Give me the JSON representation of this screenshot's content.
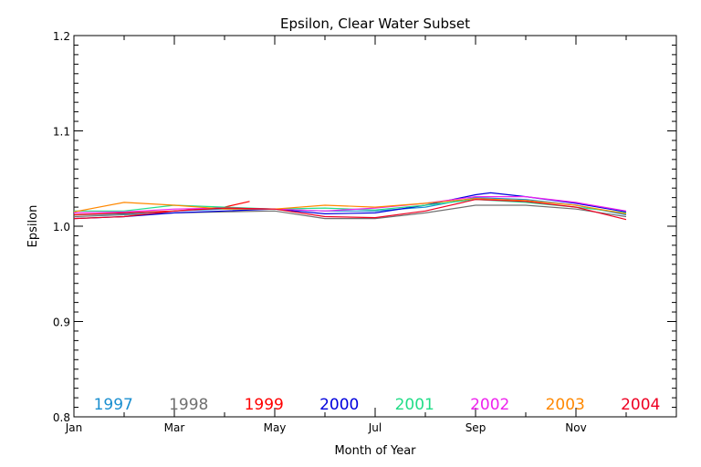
{
  "chart_data": {
    "type": "line",
    "title": "Epsilon, Clear Water Subset",
    "xlabel": "Month of Year",
    "ylabel": "Epsilon",
    "xlim": [
      1,
      13
    ],
    "ylim": [
      0.8,
      1.2
    ],
    "x_ticks": [
      {
        "value": 1,
        "label": "Jan"
      },
      {
        "value": 3,
        "label": "Mar"
      },
      {
        "value": 5,
        "label": "May"
      },
      {
        "value": 7,
        "label": "Jul"
      },
      {
        "value": 9,
        "label": "Sep"
      },
      {
        "value": 11,
        "label": "Nov"
      }
    ],
    "y_ticks": [
      {
        "value": 0.8,
        "label": "0.8"
      },
      {
        "value": 0.9,
        "label": "0.9"
      },
      {
        "value": 1.0,
        "label": "1.0"
      },
      {
        "value": 1.1,
        "label": "1.1"
      },
      {
        "value": 1.2,
        "label": "1.2"
      }
    ],
    "grid": false,
    "legend_position": "bottom",
    "series": [
      {
        "name": "1997",
        "color": "#1a8fd0",
        "x": [
          1,
          2,
          3,
          4,
          5,
          6,
          7,
          8,
          9,
          10,
          11,
          12
        ],
        "values": [
          1.012,
          1.013,
          1.016,
          1.018,
          1.018,
          1.016,
          1.016,
          1.02,
          1.03,
          1.028,
          1.022,
          1.012
        ]
      },
      {
        "name": "1998",
        "color": "#707070",
        "x": [
          1,
          2,
          3,
          4,
          5,
          6,
          7,
          8,
          9,
          10,
          11,
          12
        ],
        "values": [
          1.01,
          1.012,
          1.014,
          1.015,
          1.016,
          1.008,
          1.008,
          1.014,
          1.022,
          1.022,
          1.018,
          1.01
        ]
      },
      {
        "name": "1999",
        "color": "#ff0000",
        "x": [
          1,
          2,
          3,
          4,
          4.5
        ],
        "values": [
          1.012,
          1.014,
          1.016,
          1.02,
          1.026
        ]
      },
      {
        "name": "2000",
        "color": "#0000dd",
        "x": [
          1,
          2,
          3,
          4,
          5,
          6,
          7,
          8,
          9,
          9.3,
          10,
          11,
          12
        ],
        "values": [
          1.008,
          1.01,
          1.014,
          1.016,
          1.018,
          1.013,
          1.014,
          1.022,
          1.033,
          1.035,
          1.031,
          1.024,
          1.015
        ]
      },
      {
        "name": "2001",
        "color": "#22dd88",
        "x": [
          1,
          2,
          3,
          4,
          5,
          6,
          7,
          8,
          9,
          10,
          11,
          12
        ],
        "values": [
          1.016,
          1.016,
          1.022,
          1.02,
          1.018,
          1.019,
          1.017,
          1.022,
          1.028,
          1.025,
          1.02,
          1.014
        ]
      },
      {
        "name": "2002",
        "color": "#ee22ee",
        "x": [
          1,
          2,
          3,
          4,
          5,
          6,
          7,
          8,
          9,
          10,
          11,
          12
        ],
        "values": [
          1.014,
          1.015,
          1.018,
          1.019,
          1.018,
          1.016,
          1.019,
          1.024,
          1.031,
          1.031,
          1.025,
          1.016
        ]
      },
      {
        "name": "2003",
        "color": "#ff8800",
        "x": [
          1,
          2,
          3,
          4,
          5,
          6,
          7,
          8,
          9,
          10,
          11,
          12
        ],
        "values": [
          1.015,
          1.025,
          1.022,
          1.018,
          1.018,
          1.022,
          1.02,
          1.024,
          1.029,
          1.027,
          1.022,
          1.013
        ]
      },
      {
        "name": "2004",
        "color": "#ee0022",
        "x": [
          1,
          2,
          3,
          4,
          5,
          6,
          7,
          8,
          9,
          10,
          11,
          12
        ],
        "values": [
          1.008,
          1.01,
          1.016,
          1.019,
          1.018,
          1.01,
          1.009,
          1.016,
          1.028,
          1.026,
          1.02,
          1.007
        ]
      }
    ]
  }
}
